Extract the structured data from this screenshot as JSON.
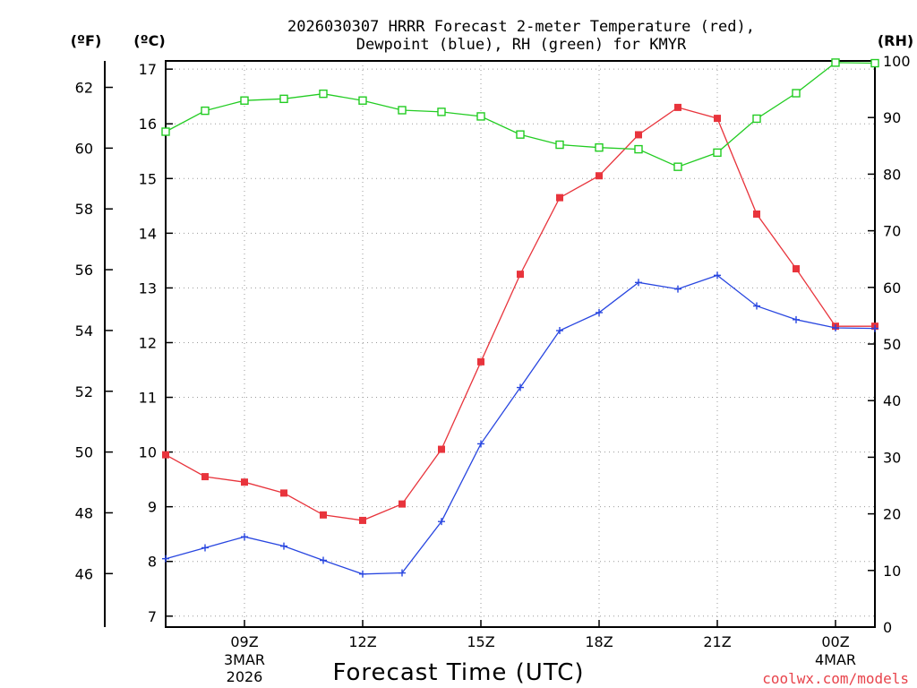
{
  "chart_data": {
    "type": "line",
    "title_line1": "2026030307 HRRR Forecast 2-meter Temperature (red),",
    "title_line2": "Dewpoint (blue), RH (green) for KMYR",
    "xlabel": "Forecast Time (UTC)",
    "credit": "coolwx.com/models",
    "units": {
      "fahrenheit": "(ºF)",
      "celsius": "(ºC)",
      "rh": "(RH)"
    },
    "x_hours": [
      7,
      8,
      9,
      10,
      11,
      12,
      13,
      14,
      15,
      16,
      17,
      18,
      19,
      20,
      21,
      22,
      23,
      24,
      25
    ],
    "xlim": [
      7,
      25
    ],
    "x_ticks": [
      {
        "hour": 9,
        "label": "09Z",
        "sub1": "3MAR",
        "sub2": "2026"
      },
      {
        "hour": 12,
        "label": "12Z",
        "sub1": "",
        "sub2": ""
      },
      {
        "hour": 15,
        "label": "15Z",
        "sub1": "",
        "sub2": ""
      },
      {
        "hour": 18,
        "label": "18Z",
        "sub1": "",
        "sub2": ""
      },
      {
        "hour": 21,
        "label": "21Z",
        "sub1": "",
        "sub2": ""
      },
      {
        "hour": 24,
        "label": "00Z",
        "sub1": "4MAR",
        "sub2": ""
      }
    ],
    "celsius_axis": {
      "ylim": [
        6.8,
        17.15
      ],
      "ticks": [
        7,
        8,
        9,
        10,
        11,
        12,
        13,
        14,
        15,
        16,
        17
      ]
    },
    "fahrenheit_axis": {
      "ticks": [
        46,
        48,
        50,
        52,
        54,
        56,
        58,
        60,
        62
      ]
    },
    "rh_axis": {
      "ylim": [
        0,
        100
      ],
      "ticks": [
        0,
        10,
        20,
        30,
        40,
        50,
        60,
        70,
        80,
        90,
        100
      ]
    },
    "series": [
      {
        "name": "Temperature",
        "color": "#e8343c",
        "marker": "square-filled",
        "axis": "celsius",
        "values": [
          9.95,
          9.55,
          9.45,
          9.25,
          8.85,
          8.75,
          9.05,
          10.05,
          11.65,
          13.25,
          14.65,
          15.05,
          15.8,
          16.3,
          16.1,
          14.35,
          13.35,
          12.3,
          12.3
        ]
      },
      {
        "name": "Dewpoint",
        "color": "#2846e0",
        "marker": "plus",
        "axis": "celsius",
        "values": [
          8.05,
          8.25,
          8.45,
          8.28,
          8.02,
          7.77,
          7.79,
          8.73,
          10.15,
          11.18,
          12.22,
          12.55,
          13.1,
          12.98,
          13.23,
          12.67,
          12.42,
          12.27,
          12.26
        ]
      },
      {
        "name": "RH",
        "color": "#22cc22",
        "marker": "square-open",
        "axis": "rh",
        "values": [
          87.5,
          91.2,
          93.0,
          93.3,
          94.2,
          93.0,
          91.3,
          91.0,
          90.2,
          87.0,
          85.2,
          84.7,
          84.4,
          81.3,
          83.8,
          89.8,
          94.3,
          99.7,
          99.6
        ]
      }
    ]
  }
}
